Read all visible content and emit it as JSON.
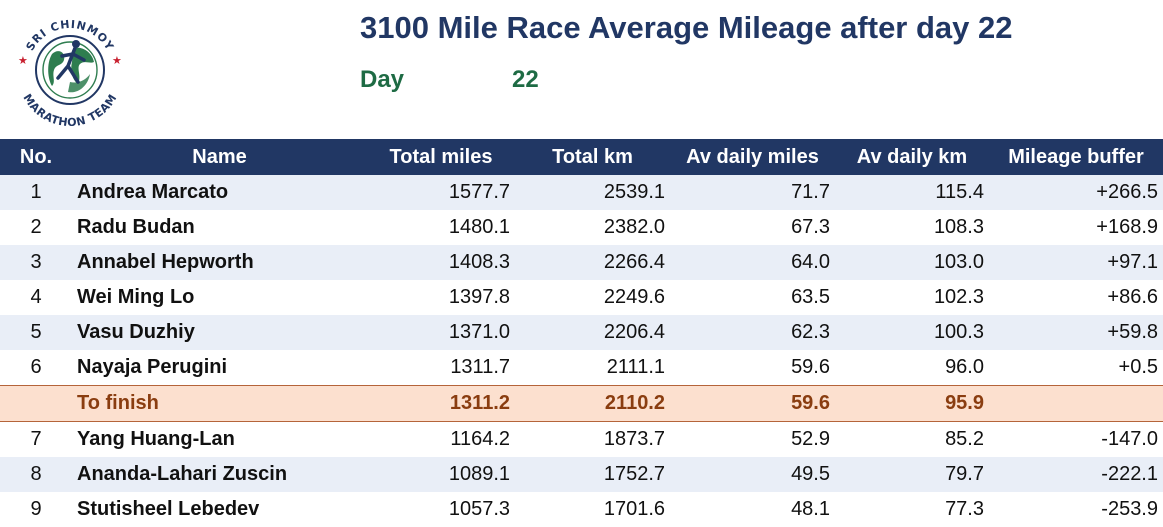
{
  "header": {
    "title": "3100 Mile Race Average Mileage after day 22",
    "day_label": "Day",
    "day_value": "22"
  },
  "logo": {
    "top_text": "SRI CHINMOY",
    "bottom_text": "MARATHON TEAM",
    "colors": {
      "ring": "#213764",
      "stars": "#c8202f",
      "globe": "#2e7d4f",
      "runner": "#213764"
    }
  },
  "table": {
    "columns": [
      "No.",
      "Name",
      "Total miles",
      "Total km",
      "Av daily miles",
      "Av daily km",
      "Mileage buffer"
    ],
    "rows": [
      {
        "no": "1",
        "name": "Andrea Marcato",
        "total_miles": "1577.7",
        "total_km": "2539.1",
        "av_miles": "71.7",
        "av_km": "115.4",
        "buffer": "+266.5"
      },
      {
        "no": "2",
        "name": "Radu Budan",
        "total_miles": "1480.1",
        "total_km": "2382.0",
        "av_miles": "67.3",
        "av_km": "108.3",
        "buffer": "+168.9"
      },
      {
        "no": "3",
        "name": "Annabel Hepworth",
        "total_miles": "1408.3",
        "total_km": "2266.4",
        "av_miles": "64.0",
        "av_km": "103.0",
        "buffer": "+97.1"
      },
      {
        "no": "4",
        "name": "Wei Ming Lo",
        "total_miles": "1397.8",
        "total_km": "2249.6",
        "av_miles": "63.5",
        "av_km": "102.3",
        "buffer": "+86.6"
      },
      {
        "no": "5",
        "name": "Vasu Duzhiy",
        "total_miles": "1371.0",
        "total_km": "2206.4",
        "av_miles": "62.3",
        "av_km": "100.3",
        "buffer": "+59.8"
      },
      {
        "no": "6",
        "name": "Nayaja Perugini",
        "total_miles": "1311.7",
        "total_km": "2111.1",
        "av_miles": "59.6",
        "av_km": "96.0",
        "buffer": "+0.5"
      },
      {
        "no": "",
        "name": "To finish",
        "total_miles": "1311.2",
        "total_km": "2110.2",
        "av_miles": "59.6",
        "av_km": "95.9",
        "buffer": "",
        "highlight": true
      },
      {
        "no": "7",
        "name": "Yang Huang-Lan",
        "total_miles": "1164.2",
        "total_km": "1873.7",
        "av_miles": "52.9",
        "av_km": "85.2",
        "buffer": "-147.0"
      },
      {
        "no": "8",
        "name": "Ananda-Lahari Zuscin",
        "total_miles": "1089.1",
        "total_km": "1752.7",
        "av_miles": "49.5",
        "av_km": "79.7",
        "buffer": "-222.1"
      },
      {
        "no": "9",
        "name": "Stutisheel Lebedev",
        "total_miles": "1057.3",
        "total_km": "1701.6",
        "av_miles": "48.1",
        "av_km": "77.3",
        "buffer": "-253.9"
      }
    ]
  }
}
